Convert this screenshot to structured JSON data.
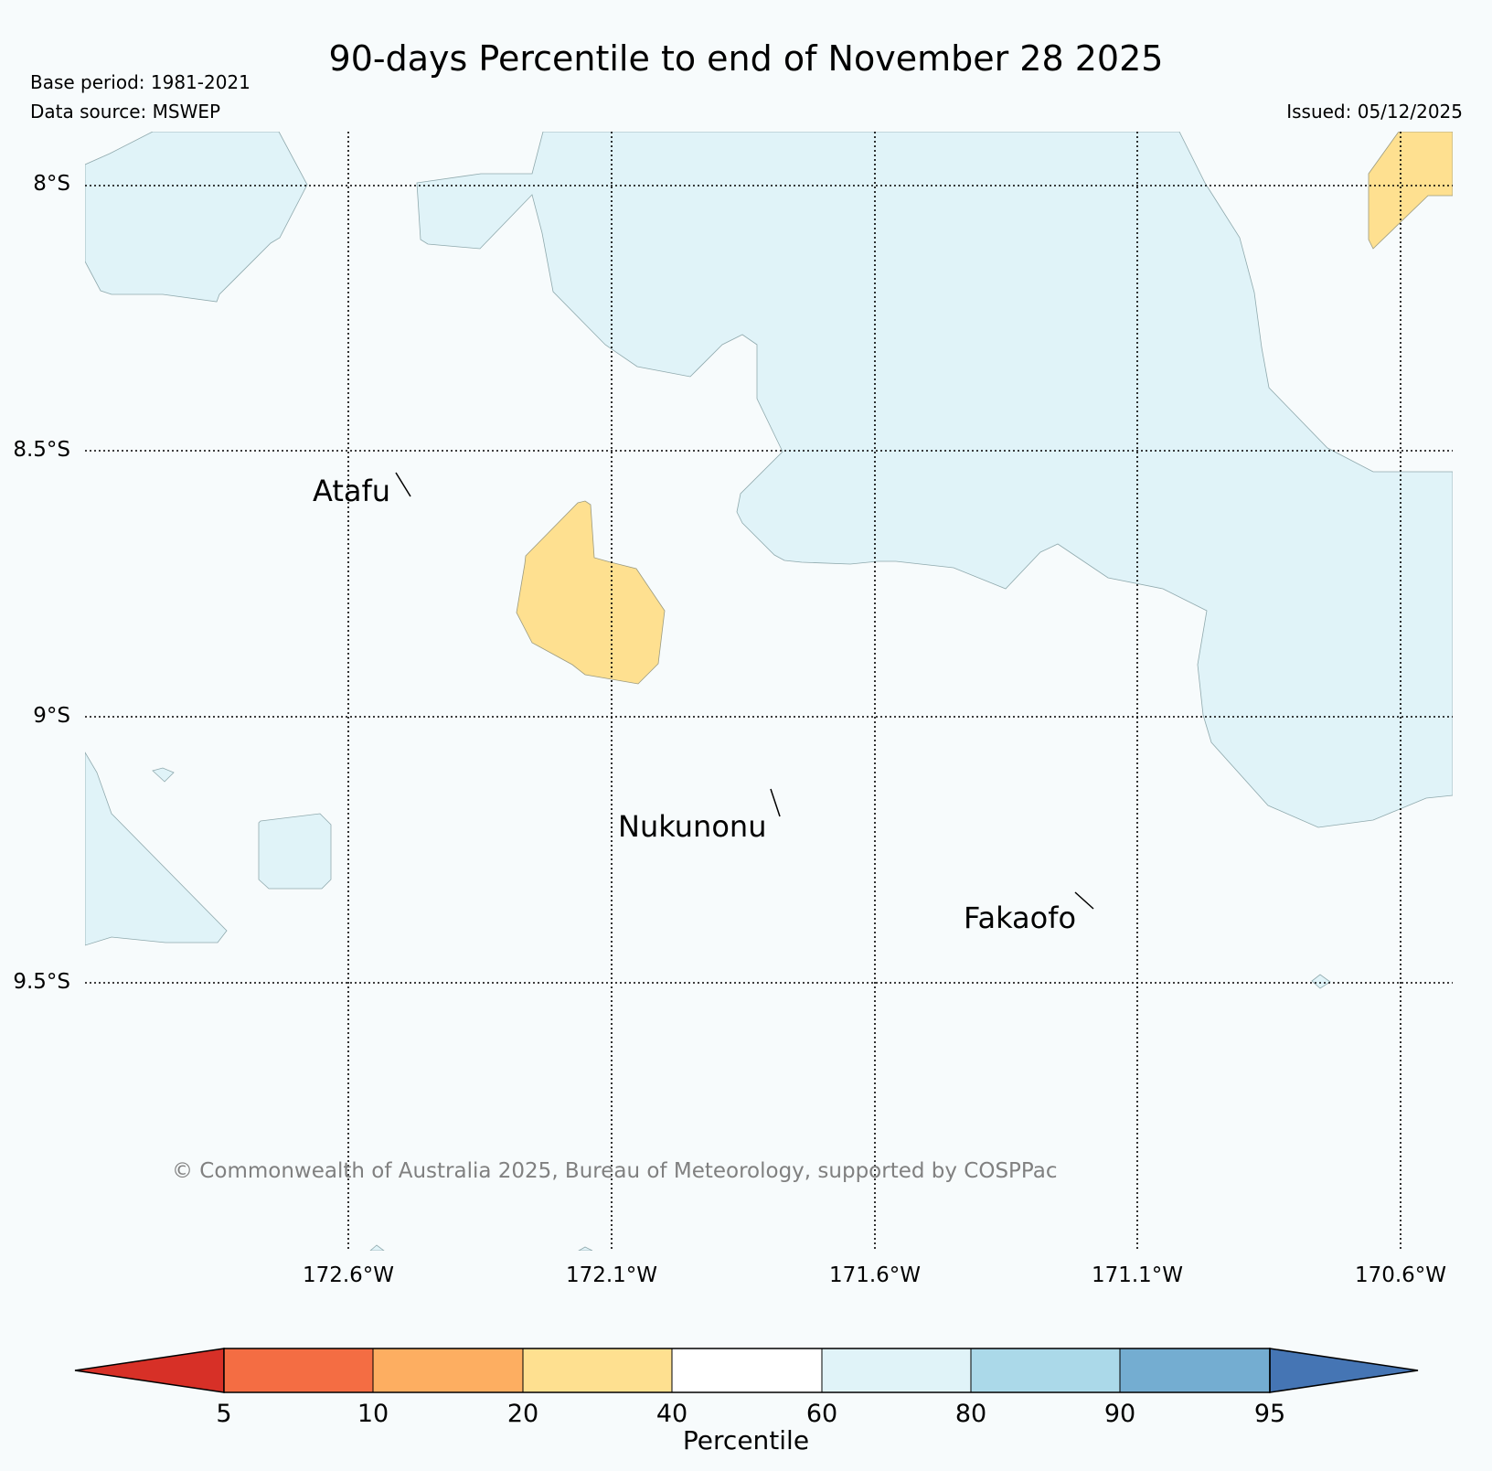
{
  "header": {
    "title": "90-days Percentile to end of November 28 2025",
    "base_period": "Base period: 1981-2021",
    "data_source": "Data source: MSWEP",
    "issued": "Issued: 05/12/2025"
  },
  "map": {
    "lat_labels": [
      "8°S",
      "8.5°S",
      "9°S",
      "9.5°S"
    ],
    "lon_labels": [
      "172.6°W",
      "172.1°W",
      "171.6°W",
      "171.1°W",
      "170.6°W"
    ],
    "places": [
      {
        "name": "Atafu"
      },
      {
        "name": "Nukunonu"
      },
      {
        "name": "Fakaofo"
      }
    ],
    "region_categories": {
      "light_blue": "60-80",
      "yellow": "20-40"
    },
    "copyright": "© Commonwealth of Australia 2025, Bureau of Meteorology, supported by COSPPac"
  },
  "colorbar": {
    "title": "Percentile",
    "ticks": [
      "5",
      "10",
      "20",
      "40",
      "60",
      "80",
      "90",
      "95"
    ],
    "colors": [
      "#d73027",
      "#f46d43",
      "#fdae61",
      "#fee090",
      "#ffffff",
      "#e0f3f8",
      "#abd9e9",
      "#74add1",
      "#4575b4"
    ]
  }
}
